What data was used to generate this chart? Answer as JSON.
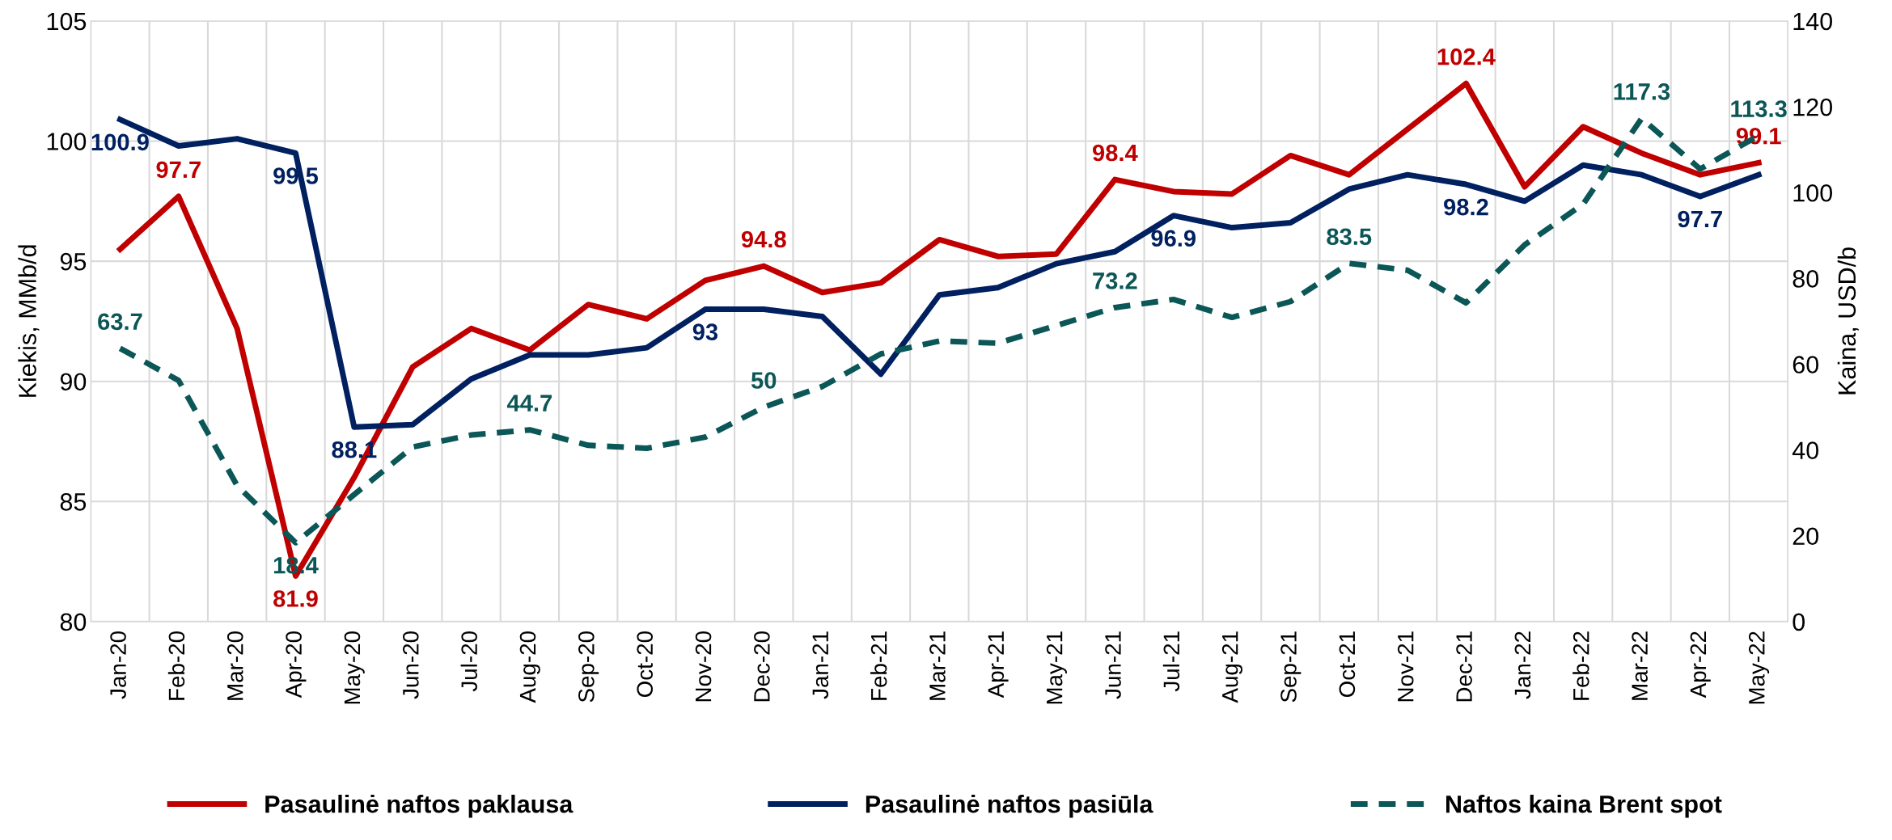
{
  "chart_data": {
    "type": "line",
    "ylabel": "Kiekis, MMb/d",
    "y2label": "Kaina, USD/b",
    "categories": [
      "Jan-20",
      "Feb-20",
      "Mar-20",
      "Apr-20",
      "May-20",
      "Jun-20",
      "Jul-20",
      "Aug-20",
      "Sep-20",
      "Oct-20",
      "Nov-20",
      "Dec-20",
      "Jan-21",
      "Feb-21",
      "Mar-21",
      "Apr-21",
      "May-21",
      "Jun-21",
      "Jul-21",
      "Aug-21",
      "Sep-21",
      "Oct-21",
      "Nov-21",
      "Dec-21",
      "Jan-22",
      "Feb-22",
      "Mar-22",
      "Apr-22",
      "May-22"
    ],
    "series": [
      {
        "name": "Pasaulinė naftos paklausa",
        "color": "#c00000",
        "line_style": "solid",
        "values": [
          95.5,
          97.7,
          92.2,
          81.9,
          86.0,
          90.6,
          92.2,
          91.3,
          93.2,
          92.6,
          94.2,
          94.8,
          93.7,
          94.1,
          95.9,
          95.2,
          95.3,
          98.4,
          97.9,
          97.8,
          99.4,
          98.6,
          100.5,
          102.4,
          98.1,
          100.6,
          99.5,
          98.6,
          99.1
        ],
        "value_labels": [
          null,
          "97.7",
          null,
          "81.9",
          null,
          null,
          null,
          null,
          null,
          null,
          null,
          "94.8",
          null,
          null,
          null,
          null,
          null,
          "98.4",
          null,
          null,
          null,
          null,
          null,
          "102.4",
          null,
          null,
          null,
          null,
          "99.1"
        ]
      },
      {
        "name": "Pasaulinė naftos pasiūla",
        "color": "#002060",
        "line_style": "solid",
        "values": [
          100.9,
          99.8,
          100.1,
          99.5,
          88.1,
          88.2,
          90.1,
          91.1,
          91.1,
          91.4,
          93,
          93,
          92.7,
          90.3,
          93.6,
          93.9,
          94.9,
          95.4,
          96.9,
          96.4,
          96.6,
          98.0,
          98.6,
          98.2,
          97.5,
          99.0,
          98.6,
          97.7,
          98.6
        ],
        "value_labels": [
          "100.9",
          null,
          null,
          "99.5",
          "88.1",
          null,
          null,
          null,
          null,
          null,
          "93",
          null,
          null,
          null,
          null,
          null,
          null,
          null,
          "96.9",
          null,
          null,
          null,
          null,
          "98.2",
          null,
          null,
          null,
          "97.7",
          null
        ]
      },
      {
        "name": "Naftos kaina Brent spot",
        "color": "#0b5656",
        "line_style": "dashed",
        "axis": "y2",
        "values": [
          63.7,
          56.2,
          31.7,
          18.4,
          29.6,
          40.7,
          43.5,
          44.7,
          41.1,
          40.4,
          43.0,
          50,
          54.8,
          62.4,
          65.4,
          64.9,
          69.0,
          73.2,
          75.1,
          70.9,
          74.6,
          83.5,
          81.9,
          74.3,
          87.8,
          97.3,
          117.3,
          105.5,
          113.3
        ],
        "value_labels": [
          "63.7",
          null,
          null,
          "18.4",
          null,
          null,
          null,
          "44.7",
          null,
          null,
          null,
          "50",
          null,
          null,
          null,
          null,
          null,
          "73.2",
          null,
          null,
          null,
          "83.5",
          null,
          null,
          null,
          null,
          "117.3",
          null,
          "113.3"
        ]
      }
    ],
    "ylim": [
      80,
      105
    ],
    "yticks": [
      80,
      85,
      90,
      95,
      100,
      105
    ],
    "y2lim": [
      0,
      140
    ],
    "y2ticks": [
      0,
      20,
      40,
      60,
      80,
      100,
      120,
      140
    ],
    "grid": true,
    "legend": "bottom",
    "marker": "none"
  }
}
